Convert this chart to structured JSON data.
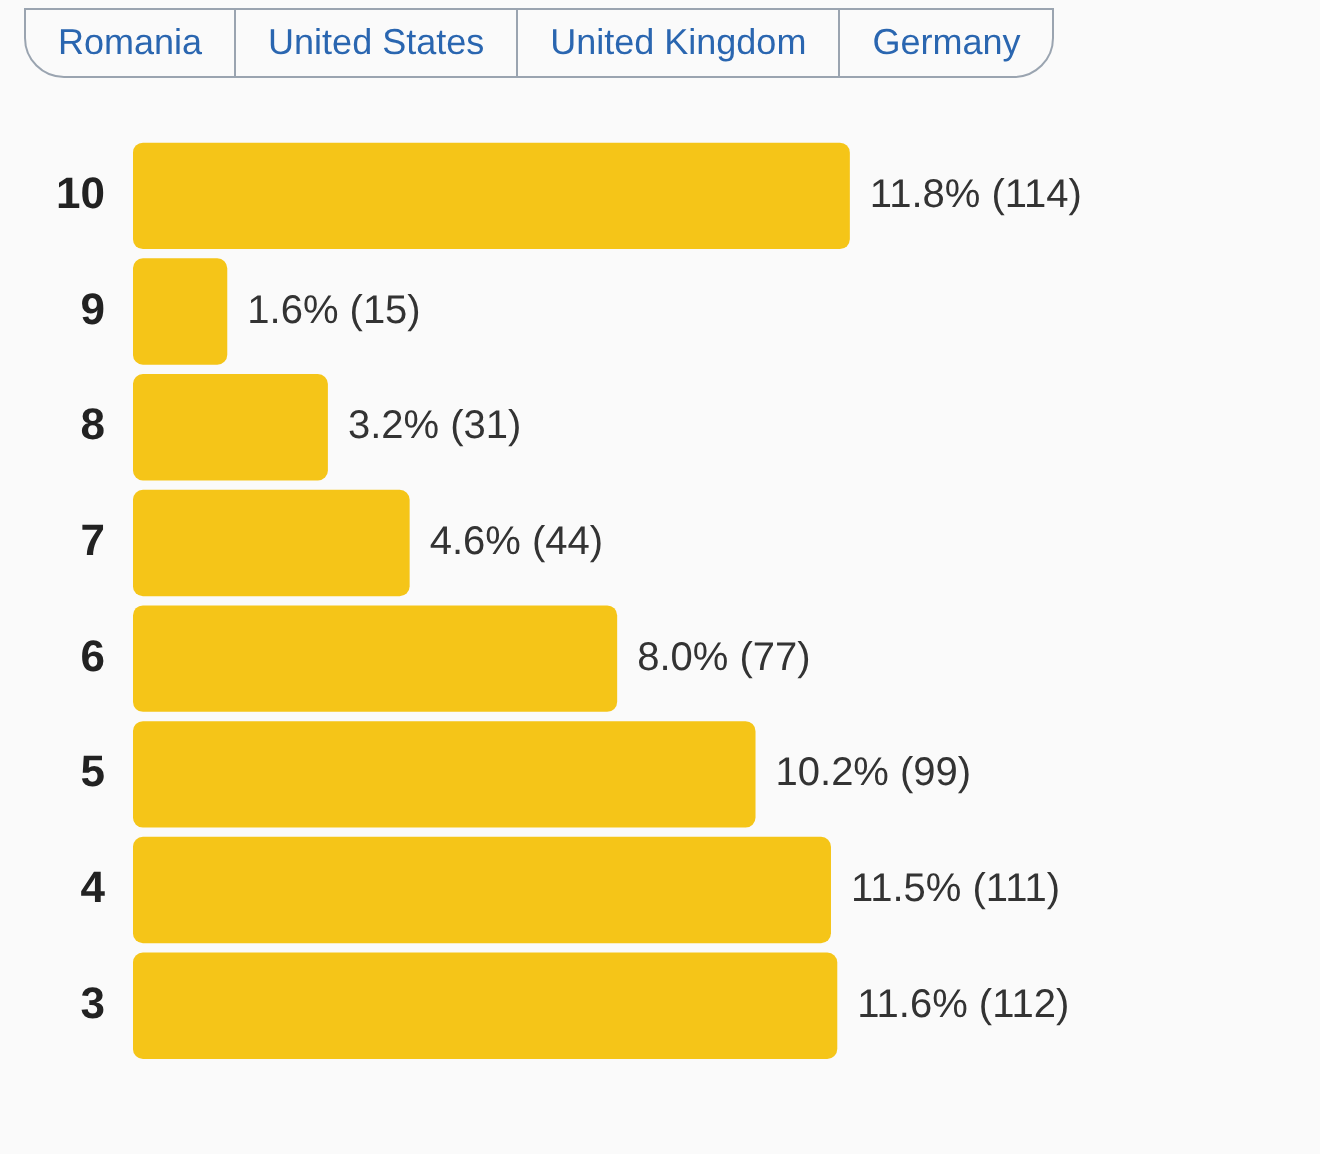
{
  "chart_data": {
    "type": "bar",
    "orientation": "horizontal",
    "categories": [
      "10",
      "9",
      "8",
      "7",
      "6",
      "5",
      "4",
      "3"
    ],
    "values": [
      114,
      15,
      31,
      44,
      77,
      99,
      111,
      112
    ],
    "value_labels": [
      "11.8% (114)",
      "1.6% (15)",
      "3.2% (31)",
      "4.6% (44)",
      "8.0% (77)",
      "10.2% (99)",
      "11.5% (111)",
      "11.6% (112)"
    ],
    "color": "#f5c518",
    "grid": false,
    "legend": false,
    "tick_labels": "y",
    "annotations": [
      "Romania",
      "United States",
      "United Kingdom",
      "Germany"
    ]
  }
}
